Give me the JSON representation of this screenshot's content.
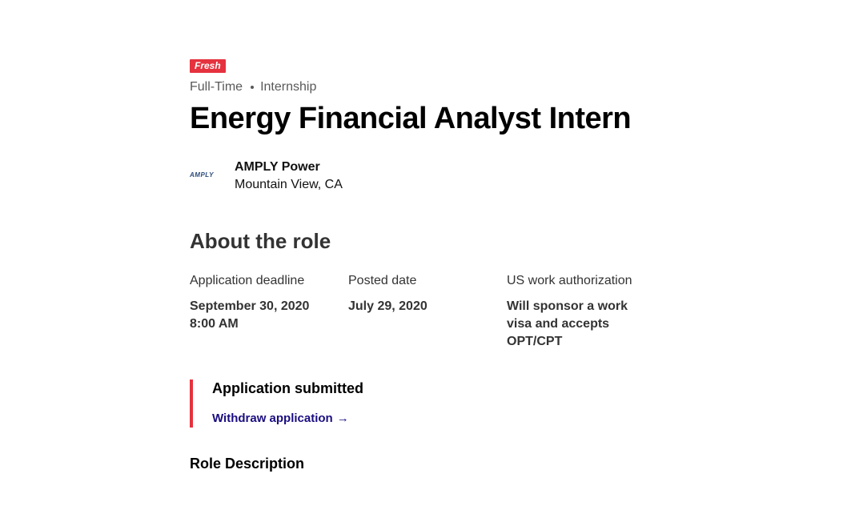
{
  "job": {
    "badge": "Fresh",
    "types": [
      "Full-Time",
      "Internship"
    ],
    "title": "Energy Financial Analyst Intern",
    "company": {
      "name": "AMPLY Power",
      "location": "Mountain View, CA",
      "logo_text": "AMPLY",
      "logo_icon": "amply-logo-icon"
    }
  },
  "about": {
    "heading": "About the role",
    "facts": [
      {
        "label": "Application deadline",
        "value": "September 30, 2020 8:00 AM"
      },
      {
        "label": "Posted date",
        "value": "July 29, 2020"
      },
      {
        "label": "US work authorization",
        "value": "Will sponsor a work visa and accepts OPT/CPT"
      }
    ]
  },
  "application": {
    "status": "Application submitted",
    "withdraw_label": "Withdraw application",
    "withdraw_icon": "arrow-right-icon"
  },
  "role_description": {
    "heading": "Role Description"
  },
  "colors": {
    "accent": "#e5323e",
    "link": "#1a0e80",
    "text": "#000000",
    "muted": "#595959"
  }
}
